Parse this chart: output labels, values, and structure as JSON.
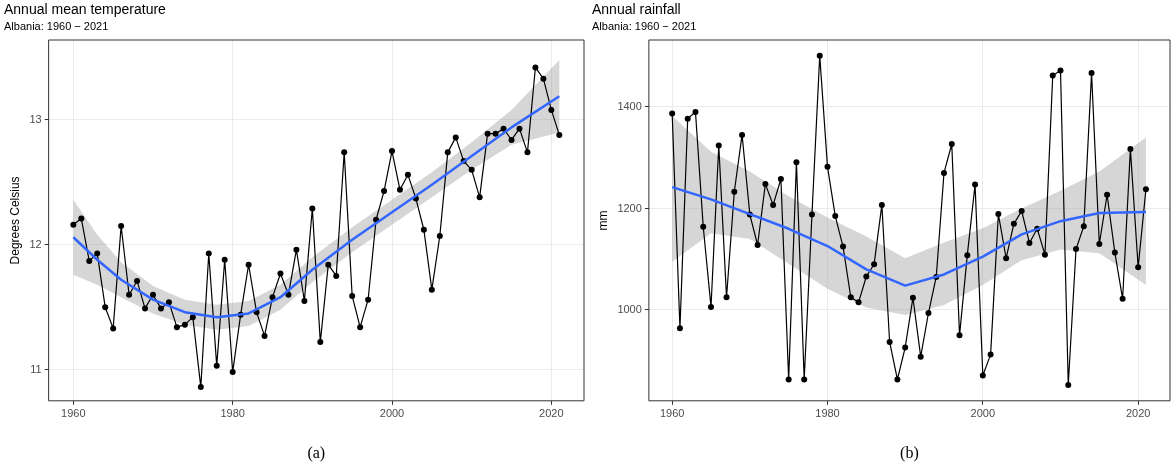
{
  "chart_data": [
    {
      "type": "line",
      "title": "Annual mean temperature",
      "subtitle": "Albania: 1960 − 2021",
      "ylabel": "Degrees Celsius",
      "annotations": [
        "(a)"
      ],
      "x": [
        1960,
        1961,
        1962,
        1963,
        1964,
        1965,
        1966,
        1967,
        1968,
        1969,
        1970,
        1971,
        1972,
        1973,
        1974,
        1975,
        1976,
        1977,
        1978,
        1979,
        1980,
        1981,
        1982,
        1983,
        1984,
        1985,
        1986,
        1987,
        1988,
        1989,
        1990,
        1991,
        1992,
        1993,
        1994,
        1995,
        1996,
        1997,
        1998,
        1999,
        2000,
        2001,
        2002,
        2003,
        2004,
        2005,
        2006,
        2007,
        2008,
        2009,
        2010,
        2011,
        2012,
        2013,
        2014,
        2015,
        2016,
        2017,
        2018,
        2019,
        2020,
        2021
      ],
      "series": [
        {
          "color": "#000000",
          "values": [
            12.16,
            12.21,
            11.87,
            11.93,
            11.5,
            11.33,
            12.15,
            11.6,
            11.71,
            11.49,
            11.6,
            11.49,
            11.54,
            11.34,
            11.36,
            11.42,
            10.86,
            11.93,
            11.03,
            11.88,
            10.98,
            11.44,
            11.84,
            11.46,
            11.27,
            11.58,
            11.77,
            11.6,
            11.96,
            11.55,
            12.29,
            11.22,
            11.84,
            11.75,
            12.74,
            11.59,
            11.34,
            11.56,
            12.2,
            12.43,
            12.75,
            12.44,
            12.56,
            12.37,
            12.12,
            11.64,
            12.07,
            12.74,
            12.86,
            12.67,
            12.6,
            12.38,
            12.89,
            12.89,
            12.93,
            12.84,
            12.93,
            12.74,
            13.42,
            13.33,
            13.08,
            12.88
          ]
        },
        {
          "type": "line",
          "marker": "none",
          "color": "#3366ff",
          "x": [
            1960,
            1963,
            1966,
            1970,
            1974,
            1978,
            1982,
            1986,
            1990,
            1995,
            2000,
            2005,
            2010,
            2015,
            2021
          ],
          "values": [
            12.06,
            11.88,
            11.72,
            11.56,
            11.46,
            11.42,
            11.45,
            11.58,
            11.8,
            12.04,
            12.26,
            12.48,
            12.71,
            12.94,
            13.19
          ],
          "lower": [
            11.76,
            11.68,
            11.58,
            11.45,
            11.36,
            11.32,
            11.35,
            11.48,
            11.7,
            11.94,
            12.16,
            12.38,
            12.6,
            12.8,
            12.9
          ],
          "upper": [
            12.36,
            12.08,
            11.86,
            11.67,
            11.56,
            11.52,
            11.55,
            11.68,
            11.9,
            12.14,
            12.36,
            12.58,
            12.82,
            13.08,
            13.48
          ]
        }
      ],
      "marker": "circle",
      "line_style": "solid",
      "xlim": [
        1956.9,
        2024.1
      ],
      "ylim": [
        10.75,
        13.64
      ],
      "xticks": [
        1960,
        1980,
        2000,
        2020
      ],
      "yticks": [
        11,
        12,
        13
      ],
      "grid": true
    },
    {
      "type": "line",
      "title": "Annual rainfall",
      "subtitle": "Albania: 1960 − 2021",
      "ylabel": "mm",
      "annotations": [
        "(b)"
      ],
      "x": [
        1960,
        1961,
        1962,
        1963,
        1964,
        1965,
        1966,
        1967,
        1968,
        1969,
        1970,
        1971,
        1972,
        1973,
        1974,
        1975,
        1976,
        1977,
        1978,
        1979,
        1980,
        1981,
        1982,
        1983,
        1984,
        1985,
        1986,
        1987,
        1988,
        1989,
        1990,
        1991,
        1992,
        1993,
        1994,
        1995,
        1996,
        1997,
        1998,
        1999,
        2000,
        2001,
        2002,
        2003,
        2004,
        2005,
        2006,
        2007,
        2008,
        2009,
        2010,
        2011,
        2012,
        2013,
        2014,
        2015,
        2016,
        2017,
        2018,
        2019,
        2020,
        2021
      ],
      "series": [
        {
          "color": "#000000",
          "values": [
            1387,
            964,
            1377,
            1390,
            1164,
            1006,
            1324,
            1025,
            1233,
            1345,
            1188,
            1128,
            1248,
            1207,
            1258,
            863,
            1291,
            863,
            1188,
            1501,
            1282,
            1185,
            1125,
            1025,
            1015,
            1066,
            1090,
            1207,
            937,
            863,
            926,
            1024,
            908,
            994,
            1065,
            1270,
            1327,
            950,
            1108,
            1247,
            871,
            912,
            1189,
            1102,
            1170,
            1195,
            1132,
            1160,
            1109,
            1462,
            1472,
            852,
            1120,
            1165,
            1467,
            1130,
            1227,
            1113,
            1022,
            1317,
            1084,
            1238
          ]
        },
        {
          "type": "line",
          "marker": "none",
          "color": "#3366ff",
          "x": [
            1960,
            1965,
            1970,
            1975,
            1980,
            1985,
            1990,
            1995,
            2000,
            2005,
            2010,
            2015,
            2021
          ],
          "values": [
            1242,
            1218,
            1189,
            1160,
            1126,
            1080,
            1048,
            1070,
            1105,
            1149,
            1175,
            1191,
            1193
          ],
          "lower": [
            1095,
            1151,
            1140,
            1091,
            1042,
            1005,
            990,
            1010,
            1049,
            1098,
            1119,
            1112,
            1049
          ],
          "upper": [
            1382,
            1312,
            1273,
            1224,
            1182,
            1145,
            1102,
            1133,
            1161,
            1200,
            1235,
            1273,
            1340
          ]
        }
      ],
      "marker": "circle",
      "line_style": "solid",
      "xlim": [
        1957,
        2024.1
      ],
      "ylim": [
        821,
        1532
      ],
      "xticks": [
        1960,
        1980,
        2000,
        2020
      ],
      "yticks": [
        1000,
        1200,
        1400
      ],
      "grid": true
    }
  ]
}
